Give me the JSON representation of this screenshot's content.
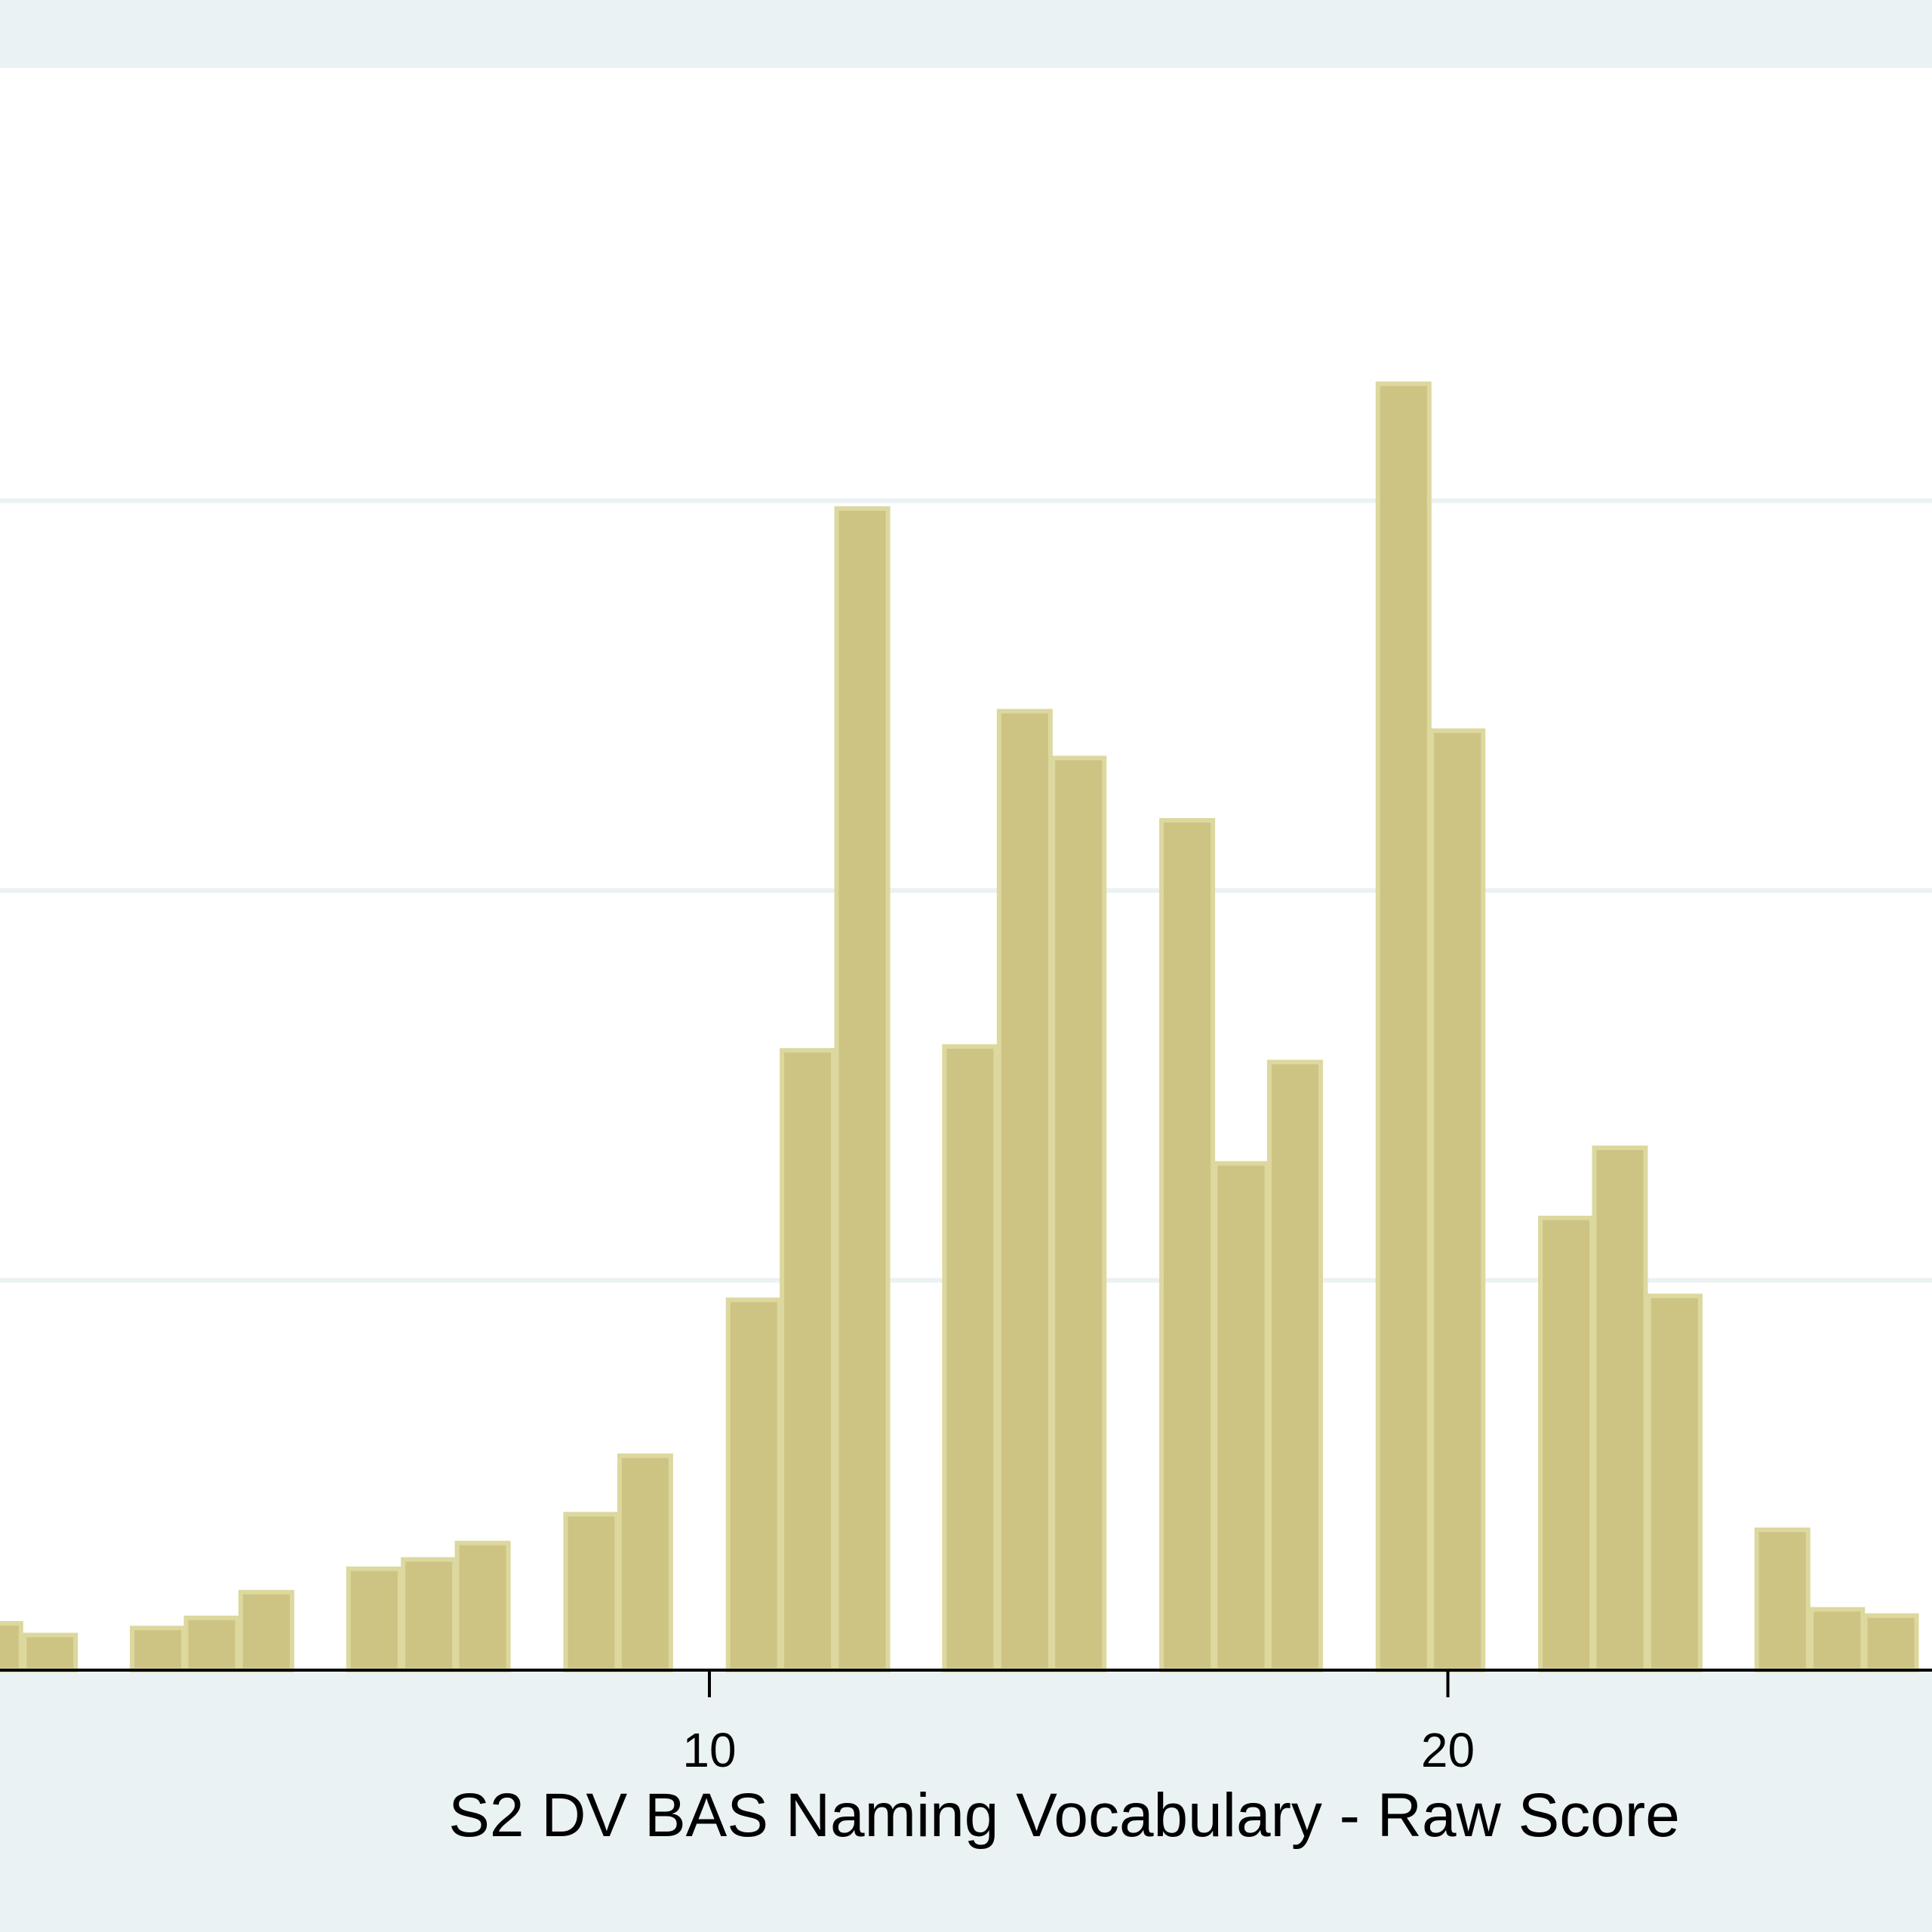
{
  "chart_data": {
    "type": "bar",
    "title": "",
    "xlabel": "S2 DV BAS Naming Vocabulary - Raw Score",
    "ylabel": "",
    "x_ticks": [
      10,
      20
    ],
    "x_ticks_labels": [
      "10",
      "20"
    ],
    "grid": true,
    "bars": [
      {
        "x": 0.33,
        "value": 0.6
      },
      {
        "x": 1.07,
        "value": 0.45
      },
      {
        "x": 2.53,
        "value": 0.54
      },
      {
        "x": 3.26,
        "value": 0.67
      },
      {
        "x": 4.0,
        "value": 1.0
      },
      {
        "x": 5.46,
        "value": 1.3
      },
      {
        "x": 6.2,
        "value": 1.42
      },
      {
        "x": 6.93,
        "value": 1.63
      },
      {
        "x": 8.4,
        "value": 2.0
      },
      {
        "x": 9.13,
        "value": 2.75
      },
      {
        "x": 10.6,
        "value": 4.75
      },
      {
        "x": 11.33,
        "value": 7.95
      },
      {
        "x": 12.07,
        "value": 14.9
      },
      {
        "x": 13.53,
        "value": 8.0
      },
      {
        "x": 14.27,
        "value": 12.3
      },
      {
        "x": 15.0,
        "value": 11.7
      },
      {
        "x": 16.47,
        "value": 10.9
      },
      {
        "x": 17.2,
        "value": 6.5
      },
      {
        "x": 17.93,
        "value": 7.8
      },
      {
        "x": 19.4,
        "value": 16.5
      },
      {
        "x": 20.13,
        "value": 12.05
      },
      {
        "x": 21.6,
        "value": 5.8
      },
      {
        "x": 22.33,
        "value": 6.7
      },
      {
        "x": 23.07,
        "value": 4.8
      },
      {
        "x": 24.53,
        "value": 1.8
      },
      {
        "x": 25.27,
        "value": 0.78
      },
      {
        "x": 26.0,
        "value": 0.7
      }
    ]
  },
  "colors": {
    "background": "#eaf2f3",
    "plot_background": "#ffffff",
    "bar_fill": "#cdc484",
    "bar_stroke": "#dcd89e",
    "grid": "#eaf2f3",
    "axis": "#000000"
  }
}
